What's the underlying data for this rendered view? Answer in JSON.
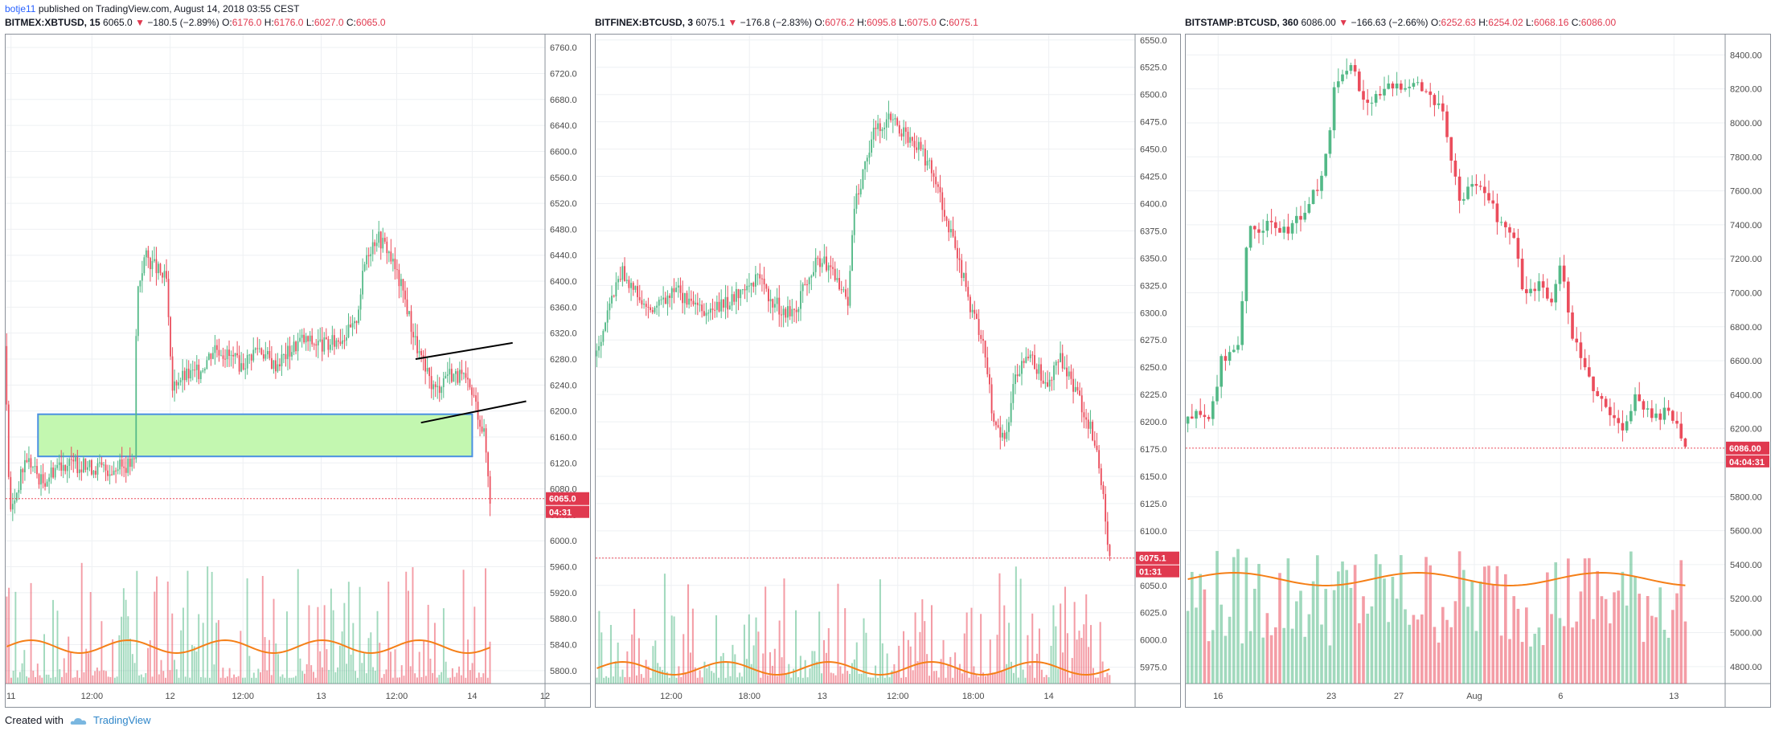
{
  "header": {
    "user": "botje11",
    "text": "published on TradingView.com, August 14, 2018 03:55 CEST"
  },
  "footer": {
    "created_with": "Created with",
    "brand": "TradingView"
  },
  "colors": {
    "up": "#53b987",
    "down": "#eb4d5c",
    "ma": "#f57f17",
    "grid": "#eef0f3",
    "box_fill": "#c3f7b0",
    "box_stroke": "#4a90e2"
  },
  "panels": [
    {
      "symbol": "BITMEX:XBTUSD, 15",
      "last": "6065.0",
      "arrow": "▼",
      "change": "−180.5 (−2.89%)",
      "ohlc": [
        {
          "k": "O:",
          "v": "6176.0"
        },
        {
          "k": "H:",
          "v": "6176.0"
        },
        {
          "k": "L:",
          "v": "6027.0"
        },
        {
          "k": "C:",
          "v": "6065.0"
        }
      ],
      "price_label": "6065.0",
      "timer": "04:31",
      "chart_data": {
        "type": "candlestick",
        "y_ticks": [
          "6760.0",
          "6720.0",
          "6680.0",
          "6640.0",
          "6600.0",
          "6560.0",
          "6520.0",
          "6480.0",
          "6440.0",
          "6400.0",
          "6360.0",
          "6320.0",
          "6280.0",
          "6240.0",
          "6200.0",
          "6160.0",
          "6120.0",
          "6080.0",
          "6040.0",
          "6000.0",
          "5960.0",
          "5920.0",
          "5880.0",
          "5840.0",
          "5800.0"
        ],
        "ylim": [
          5780,
          6780
        ],
        "x_ticks": [
          {
            "label": "11",
            "f": 0.01
          },
          {
            "label": "12:00",
            "f": 0.16
          },
          {
            "label": "12",
            "f": 0.305
          },
          {
            "label": "12:00",
            "f": 0.44
          },
          {
            "label": "13",
            "f": 0.585
          },
          {
            "label": "12:00",
            "f": 0.725
          },
          {
            "label": "14",
            "f": 0.865
          },
          {
            "label": "12",
            "f": 1.0
          }
        ],
        "last_price": 6065.0,
        "data_end": 0.9,
        "path": [
          [
            0,
            6300
          ],
          [
            0.01,
            6040
          ],
          [
            0.04,
            6130
          ],
          [
            0.07,
            6090
          ],
          [
            0.1,
            6120
          ],
          [
            0.2,
            6110
          ],
          [
            0.24,
            6120
          ],
          [
            0.245,
            6380
          ],
          [
            0.26,
            6440
          ],
          [
            0.3,
            6400
          ],
          [
            0.31,
            6230
          ],
          [
            0.32,
            6250
          ],
          [
            0.36,
            6260
          ],
          [
            0.39,
            6300
          ],
          [
            0.44,
            6270
          ],
          [
            0.47,
            6300
          ],
          [
            0.5,
            6270
          ],
          [
            0.55,
            6310
          ],
          [
            0.6,
            6300
          ],
          [
            0.65,
            6330
          ],
          [
            0.67,
            6440
          ],
          [
            0.69,
            6470
          ],
          [
            0.71,
            6450
          ],
          [
            0.74,
            6380
          ],
          [
            0.76,
            6310
          ],
          [
            0.78,
            6260
          ],
          [
            0.8,
            6230
          ],
          [
            0.82,
            6260
          ],
          [
            0.85,
            6250
          ],
          [
            0.87,
            6220
          ],
          [
            0.89,
            6160
          ],
          [
            0.9,
            6065
          ]
        ],
        "volume_max": 100,
        "ma_level": 0.2
      },
      "annotation": {
        "box_range": [
          6130,
          6195
        ],
        "box_x": [
          0.06,
          0.865
        ],
        "lines": [
          {
            "x1": 0.76,
            "y1": 6280,
            "x2": 0.94,
            "y2": 6305
          },
          {
            "x1": 0.77,
            "y1": 6182,
            "x2": 0.965,
            "y2": 6215
          }
        ]
      }
    },
    {
      "symbol": "BITFINEX:BTCUSD, 3",
      "last": "6075.1",
      "arrow": "▼",
      "change": "−176.8 (−2.83%)",
      "ohlc": [
        {
          "k": "O:",
          "v": "6076.2"
        },
        {
          "k": "H:",
          "v": "6095.8"
        },
        {
          "k": "L:",
          "v": "6075.0"
        },
        {
          "k": "C:",
          "v": "6075.1"
        }
      ],
      "price_label": "6075.1",
      "timer": "01:31",
      "chart_data": {
        "type": "candlestick",
        "y_ticks": [
          "6550.0",
          "6525.0",
          "6500.0",
          "6475.0",
          "6450.0",
          "6425.0",
          "6400.0",
          "6375.0",
          "6350.0",
          "6325.0",
          "6300.0",
          "6275.0",
          "6250.0",
          "6225.0",
          "6200.0",
          "6175.0",
          "6150.0",
          "6125.0",
          "6100.0",
          "6075.0",
          "6050.0",
          "6025.0",
          "6000.0",
          "5975.0"
        ],
        "ylim": [
          5960,
          6555
        ],
        "x_ticks": [
          {
            "label": "12:00",
            "f": 0.14
          },
          {
            "label": "18:00",
            "f": 0.285
          },
          {
            "label": "13",
            "f": 0.42
          },
          {
            "label": "12:00",
            "f": 0.56
          },
          {
            "label": "18:00",
            "f": 0.7
          },
          {
            "label": "14",
            "f": 0.84
          }
        ],
        "last_price": 6075.1,
        "data_end": 0.955,
        "path": [
          [
            0,
            6260
          ],
          [
            0.03,
            6310
          ],
          [
            0.05,
            6340
          ],
          [
            0.1,
            6300
          ],
          [
            0.15,
            6320
          ],
          [
            0.2,
            6300
          ],
          [
            0.25,
            6310
          ],
          [
            0.3,
            6330
          ],
          [
            0.35,
            6300
          ],
          [
            0.38,
            6310
          ],
          [
            0.4,
            6340
          ],
          [
            0.42,
            6350
          ],
          [
            0.45,
            6330
          ],
          [
            0.47,
            6310
          ],
          [
            0.48,
            6400
          ],
          [
            0.5,
            6430
          ],
          [
            0.52,
            6470
          ],
          [
            0.55,
            6480
          ],
          [
            0.58,
            6460
          ],
          [
            0.6,
            6450
          ],
          [
            0.63,
            6430
          ],
          [
            0.65,
            6390
          ],
          [
            0.67,
            6360
          ],
          [
            0.7,
            6300
          ],
          [
            0.72,
            6270
          ],
          [
            0.74,
            6200
          ],
          [
            0.76,
            6180
          ],
          [
            0.78,
            6240
          ],
          [
            0.8,
            6260
          ],
          [
            0.82,
            6250
          ],
          [
            0.84,
            6230
          ],
          [
            0.86,
            6260
          ],
          [
            0.88,
            6240
          ],
          [
            0.9,
            6220
          ],
          [
            0.93,
            6180
          ],
          [
            0.945,
            6120
          ],
          [
            0.955,
            6075
          ]
        ],
        "volume_max": 100,
        "ma_level": 0.05
      }
    },
    {
      "symbol": "BITSTAMP:BTCUSD, 360",
      "last": "6086.00",
      "arrow": "▼",
      "change": "−166.63 (−2.66%)",
      "ohlc": [
        {
          "k": "O:",
          "v": "6252.63"
        },
        {
          "k": "H:",
          "v": "6254.02"
        },
        {
          "k": "L:",
          "v": "6068.16"
        },
        {
          "k": "C:",
          "v": "6086.00"
        }
      ],
      "price_label": "6086.00",
      "timer": "04:04:31",
      "chart_data": {
        "type": "candlestick",
        "y_ticks": [
          "8400.00",
          "8200.00",
          "8000.00",
          "7800.00",
          "7600.00",
          "7400.00",
          "7200.00",
          "7000.00",
          "6800.00",
          "6600.00",
          "6400.00",
          "6200.00",
          "6000.00",
          "5800.00",
          "5600.00",
          "5400.00",
          "5200.00",
          "5000.00",
          "4800.00"
        ],
        "ylim": [
          4700,
          8520
        ],
        "x_ticks": [
          {
            "label": "16",
            "f": 0.06
          },
          {
            "label": "23",
            "f": 0.27
          },
          {
            "label": "27",
            "f": 0.395
          },
          {
            "label": "Aug",
            "f": 0.535
          },
          {
            "label": "6",
            "f": 0.695
          },
          {
            "label": "13",
            "f": 0.905
          }
        ],
        "last_price": 6086.0,
        "data_end": 0.93,
        "path": [
          [
            0,
            6230
          ],
          [
            0.03,
            6300
          ],
          [
            0.05,
            6250
          ],
          [
            0.07,
            6600
          ],
          [
            0.1,
            6700
          ],
          [
            0.12,
            7350
          ],
          [
            0.15,
            7400
          ],
          [
            0.18,
            7350
          ],
          [
            0.22,
            7450
          ],
          [
            0.26,
            7700
          ],
          [
            0.28,
            8200
          ],
          [
            0.31,
            8350
          ],
          [
            0.33,
            8150
          ],
          [
            0.36,
            8150
          ],
          [
            0.38,
            8200
          ],
          [
            0.42,
            8250
          ],
          [
            0.45,
            8200
          ],
          [
            0.48,
            8050
          ],
          [
            0.51,
            7550
          ],
          [
            0.55,
            7650
          ],
          [
            0.58,
            7450
          ],
          [
            0.61,
            7350
          ],
          [
            0.63,
            7000
          ],
          [
            0.66,
            7050
          ],
          [
            0.68,
            6950
          ],
          [
            0.7,
            7150
          ],
          [
            0.72,
            6750
          ],
          [
            0.75,
            6500
          ],
          [
            0.78,
            6350
          ],
          [
            0.81,
            6200
          ],
          [
            0.84,
            6400
          ],
          [
            0.87,
            6250
          ],
          [
            0.9,
            6300
          ],
          [
            0.93,
            6086
          ]
        ],
        "volume_max": 100,
        "ma_level": 0.5
      }
    }
  ]
}
